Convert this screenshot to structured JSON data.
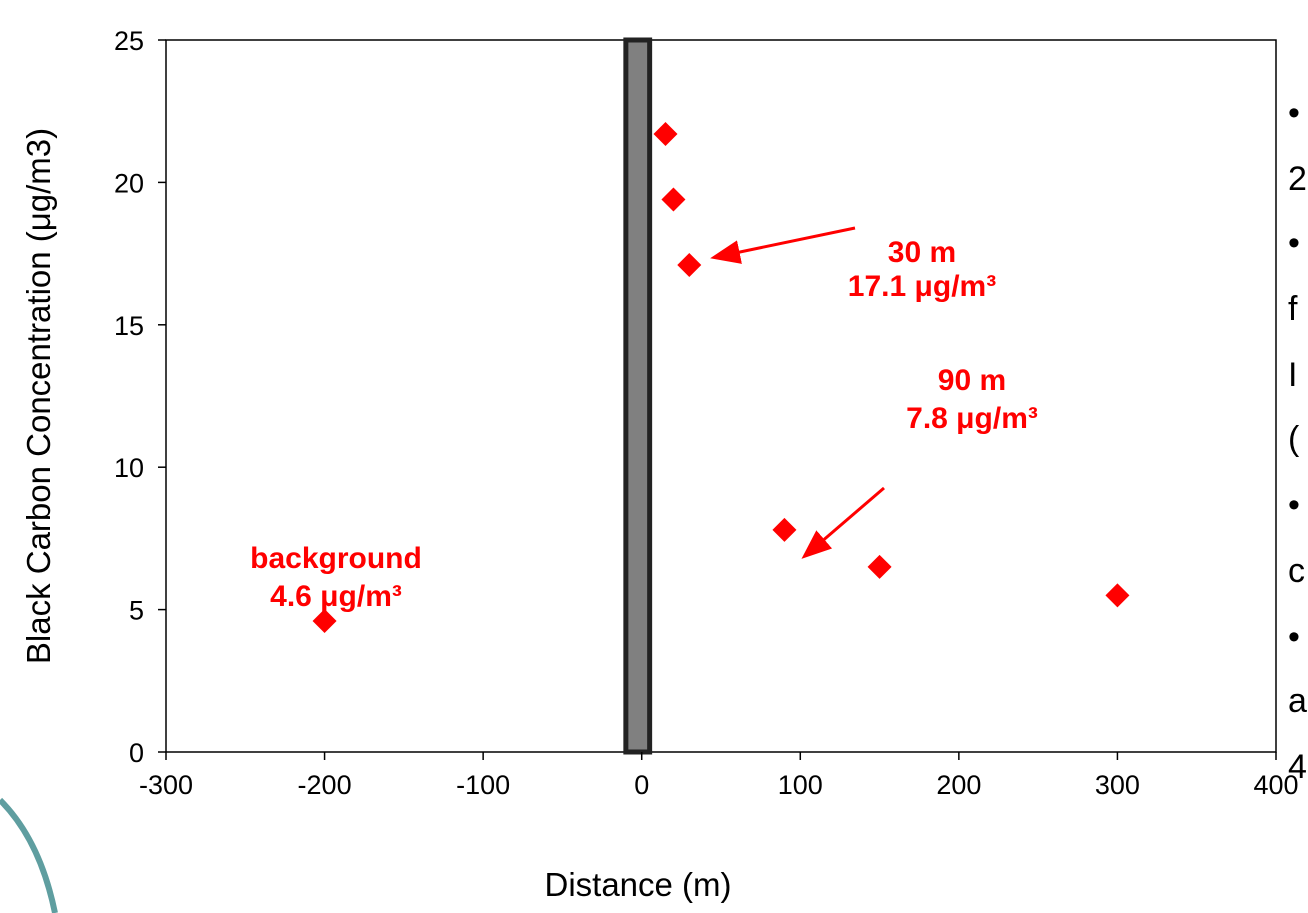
{
  "chart_data": {
    "type": "scatter",
    "title": "",
    "xlabel": "Distance (m)",
    "ylabel": "Black Carbon Concentration (μg/m3)",
    "xlim": [
      -300,
      400
    ],
    "ylim": [
      0,
      25
    ],
    "x_ticks": [
      -300,
      -200,
      -100,
      0,
      100,
      200,
      300,
      400
    ],
    "y_ticks": [
      0,
      5,
      10,
      15,
      20,
      25
    ],
    "grid": false,
    "legend": "none",
    "marker": "diamond",
    "marker_color": "#ff0000",
    "points": [
      {
        "x": -200,
        "y": 4.6
      },
      {
        "x": 15,
        "y": 21.7
      },
      {
        "x": 20,
        "y": 19.4
      },
      {
        "x": 30,
        "y": 17.1
      },
      {
        "x": 90,
        "y": 7.8
      },
      {
        "x": 150,
        "y": 6.5
      },
      {
        "x": 300,
        "y": 5.5
      }
    ],
    "road_band": {
      "x_from": -10,
      "x_to": 5,
      "fill": "#808080"
    },
    "annotations": [
      {
        "lines": [
          "30 m",
          "17.1 μg/m³"
        ],
        "target": {
          "x": 30,
          "y": 17.1
        },
        "arrow": true
      },
      {
        "lines": [
          "90 m",
          "7.8 μg/m³"
        ],
        "target": {
          "x": 90,
          "y": 7.8
        },
        "arrow": true
      },
      {
        "lines": [
          "background",
          "4.6 μg/m³"
        ],
        "target": {
          "x": -200,
          "y": 4.6
        },
        "arrow": false
      }
    ]
  },
  "side_text": [
    "•",
    "2",
    "•",
    "f",
    "I",
    "(",
    "•",
    "c",
    "•",
    "a",
    "4"
  ],
  "colors": {
    "accent": "#ff0000",
    "road": "#808080",
    "decor_arc": "#5f9ea0"
  }
}
